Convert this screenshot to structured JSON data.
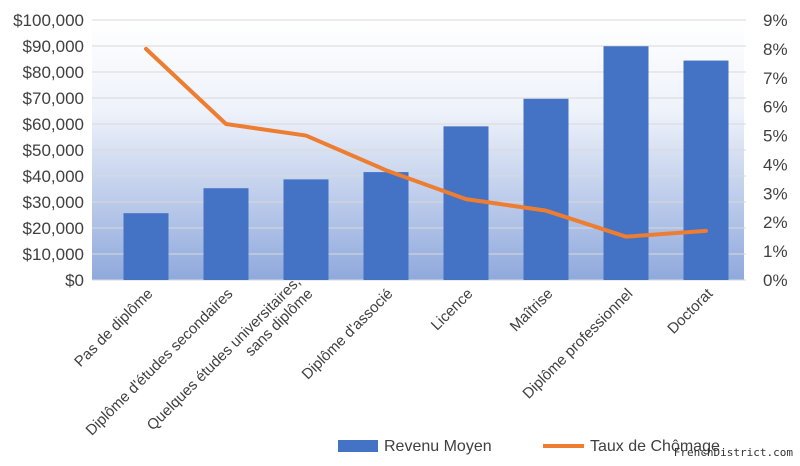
{
  "chart_data": {
    "type": "bar+line",
    "title": "",
    "categories": [
      [
        "Pas de diplôme"
      ],
      [
        "Diplôme d'études secondaires"
      ],
      [
        "Quelques études universitaires,",
        "sans diplôme"
      ],
      [
        "Diplôme d'associé"
      ],
      [
        "Licence"
      ],
      [
        "Maîtrise"
      ],
      [
        "Diplôme professionnel"
      ],
      [
        "Doctorat"
      ]
    ],
    "series": [
      {
        "name": "Revenu Moyen",
        "type": "bar",
        "axis": "left",
        "color": "#4472C4",
        "values": [
          25700,
          35300,
          38700,
          41500,
          59100,
          69700,
          89900,
          84400
        ]
      },
      {
        "name": "Taux de Chômage",
        "type": "line",
        "axis": "right",
        "color": "#ED7D31",
        "values": [
          8.0,
          5.4,
          5.0,
          3.8,
          2.8,
          2.4,
          1.5,
          1.7
        ]
      }
    ],
    "yleft": {
      "min": 0,
      "max": 100000,
      "step": 10000,
      "ticks": [
        "$0",
        "$10,000",
        "$20,000",
        "$30,000",
        "$40,000",
        "$50,000",
        "$60,000",
        "$70,000",
        "$80,000",
        "$90,000",
        "$100,000"
      ]
    },
    "yright": {
      "min": 0,
      "max": 9,
      "step": 1,
      "ticks": [
        "0%",
        "1%",
        "2%",
        "3%",
        "4%",
        "5%",
        "6%",
        "7%",
        "8%",
        "9%"
      ]
    },
    "grid": true,
    "legend": "bottom",
    "background": "gradient-blue"
  },
  "watermark": "FrenchDistrict.com"
}
